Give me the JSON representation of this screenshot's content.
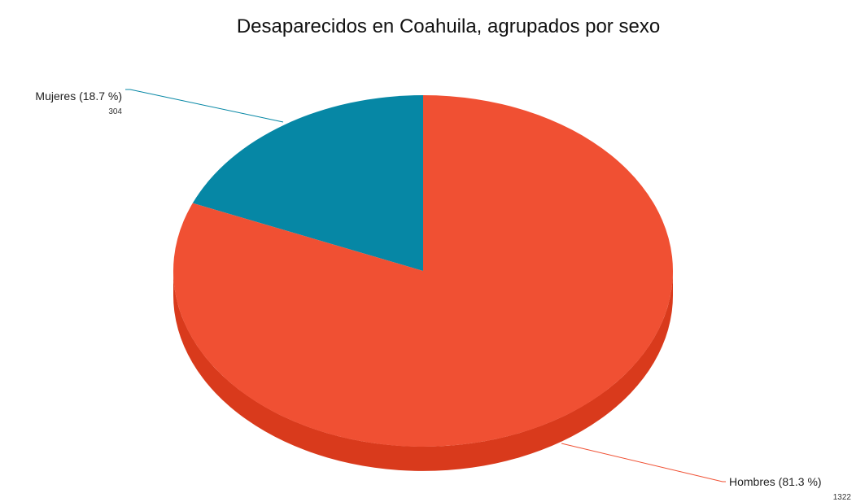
{
  "chart_data": {
    "type": "pie",
    "title": "Desaparecidos en Coahuila, agrupados por sexo",
    "slices": [
      {
        "label": "Mujeres (18.7 %)",
        "count_label": "304",
        "value": 304,
        "percent": 18.7,
        "color": "#0687a5",
        "side_color": "#056a82"
      },
      {
        "label": "Hombres (81.3 %)",
        "count_label": "1322",
        "value": 1322,
        "percent": 81.3,
        "color": "#f05033",
        "side_color": "#d93a1c"
      }
    ],
    "style": "3d",
    "legend": "none"
  }
}
